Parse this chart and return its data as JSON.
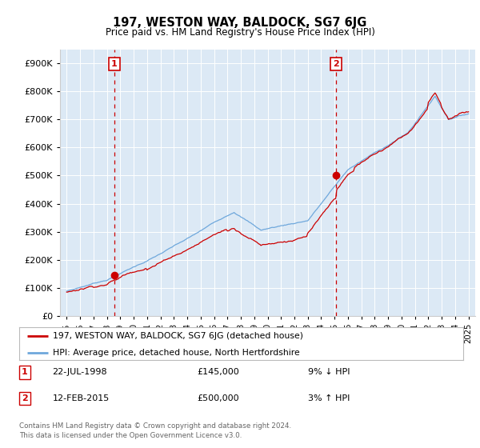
{
  "title": "197, WESTON WAY, BALDOCK, SG7 6JG",
  "subtitle": "Price paid vs. HM Land Registry's House Price Index (HPI)",
  "legend_line1": "197, WESTON WAY, BALDOCK, SG7 6JG (detached house)",
  "legend_line2": "HPI: Average price, detached house, North Hertfordshire",
  "annotation1": {
    "label": "1",
    "date": "22-JUL-1998",
    "price": "£145,000",
    "pct": "9% ↓ HPI",
    "x_year": 1998.55,
    "y_val": 145000
  },
  "annotation2": {
    "label": "2",
    "date": "12-FEB-2015",
    "price": "£500,000",
    "pct": "3% ↑ HPI",
    "x_year": 2015.12,
    "y_val": 500000
  },
  "footer1": "Contains HM Land Registry data © Crown copyright and database right 2024.",
  "footer2": "This data is licensed under the Open Government Licence v3.0.",
  "hpi_color": "#6fa8dc",
  "price_color": "#cc0000",
  "plot_bg_color": "#dce9f5",
  "ylim": [
    0,
    950000
  ],
  "yticks": [
    0,
    100000,
    200000,
    300000,
    400000,
    500000,
    600000,
    700000,
    800000,
    900000
  ],
  "xlim_start": 1994.5,
  "xlim_end": 2025.5
}
